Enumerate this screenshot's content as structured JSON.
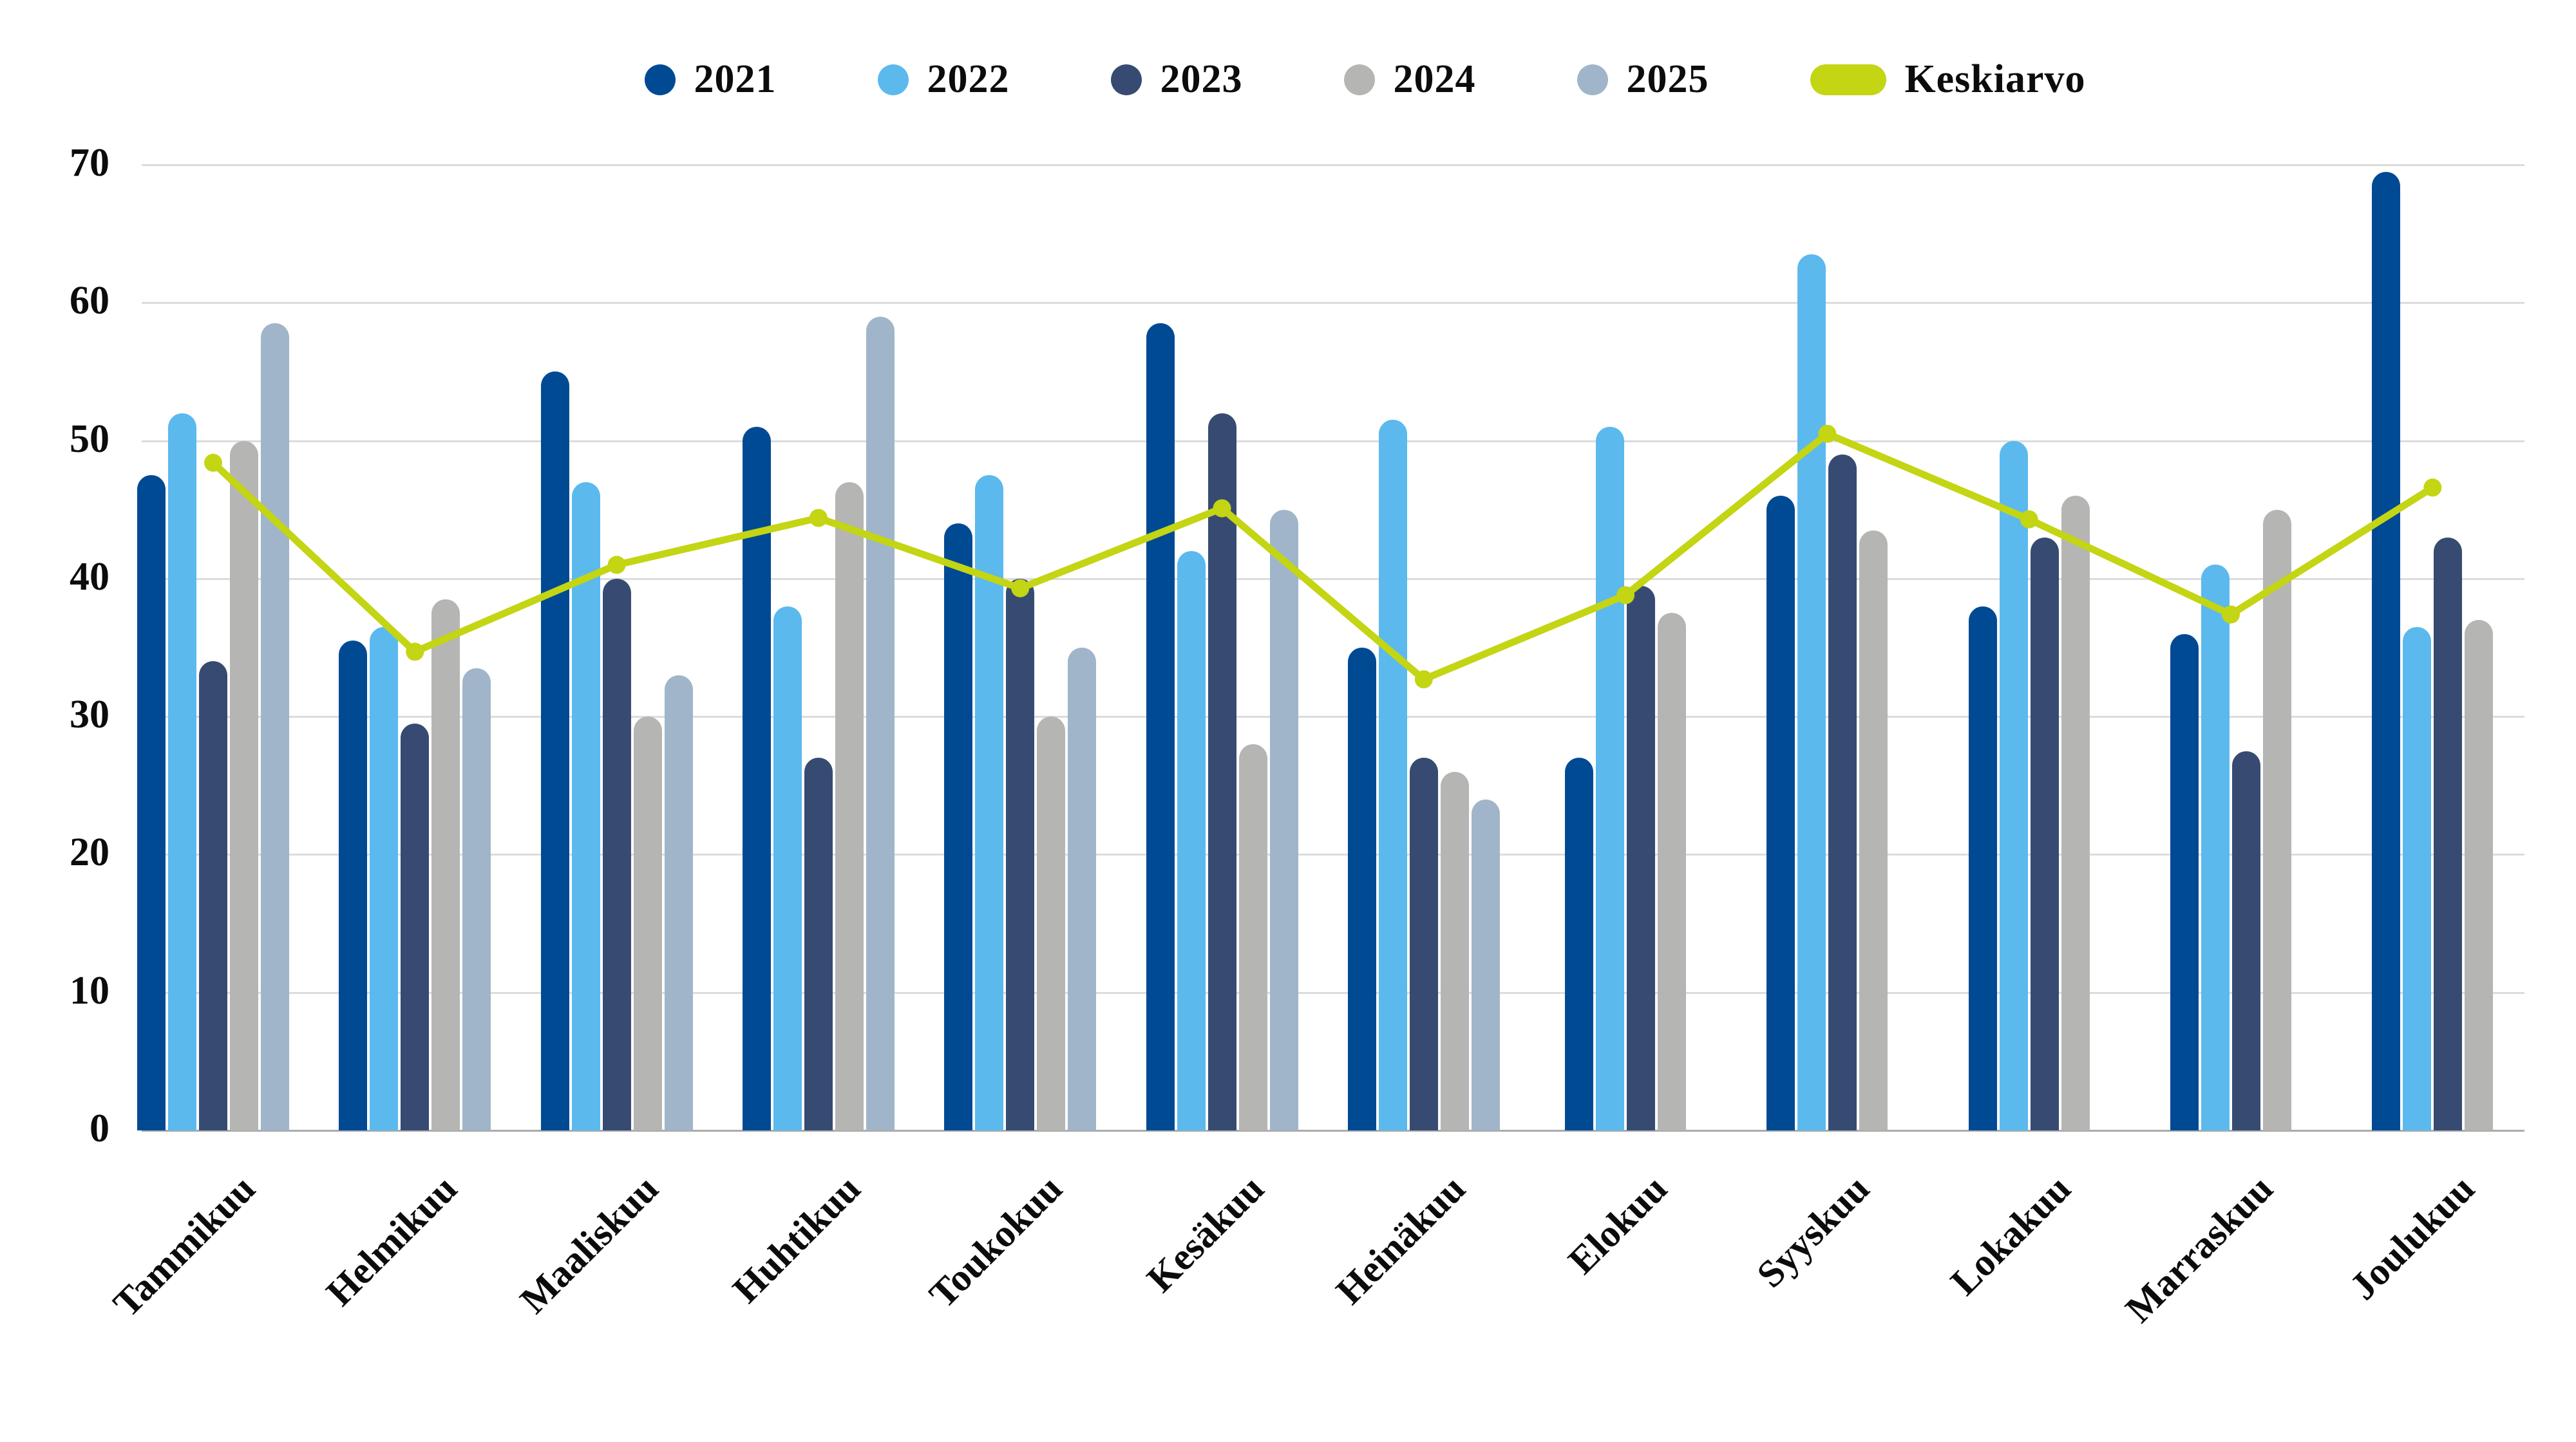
{
  "legend": {
    "items": [
      {
        "label": "2021",
        "color": "#004a94",
        "marker": "circle"
      },
      {
        "label": "2022",
        "color": "#5bb9ed",
        "marker": "circle"
      },
      {
        "label": "2023",
        "color": "#374b72",
        "marker": "circle"
      },
      {
        "label": "2024",
        "color": "#b5b5b3",
        "marker": "circle"
      },
      {
        "label": "2025",
        "color": "#a0b5c9",
        "marker": "circle"
      },
      {
        "label": "Keskiarvo",
        "color": "#c3d513",
        "marker": "pill"
      }
    ]
  },
  "chart_data": {
    "type": "bar",
    "title": "",
    "xlabel": "",
    "ylabel": "",
    "ylim": [
      0,
      70
    ],
    "yticks": [
      0,
      10,
      20,
      30,
      40,
      50,
      60,
      70
    ],
    "grid": true,
    "legend_position": "top",
    "categories": [
      "Tammikuu",
      "Helmikuu",
      "Maaliskuu",
      "Huhtikuu",
      "Toukokuu",
      "Kesäkuu",
      "Heinäkuu",
      "Elokuu",
      "Syyskuu",
      "Lokakuu",
      "Marraskuu",
      "Joulukuu"
    ],
    "series": [
      {
        "name": "2021",
        "color": "#004a94",
        "values": [
          47.5,
          35.5,
          55,
          51,
          44,
          58.5,
          35,
          27,
          46,
          38,
          36,
          69.5
        ]
      },
      {
        "name": "2022",
        "color": "#5bb9ed",
        "values": [
          52,
          36.5,
          47,
          38,
          47.5,
          42,
          51.5,
          51,
          63.5,
          50,
          41,
          36.5
        ]
      },
      {
        "name": "2023",
        "color": "#374b72",
        "values": [
          34,
          29.5,
          40,
          27,
          40,
          52,
          27,
          39.5,
          49,
          43,
          27.5,
          43
        ]
      },
      {
        "name": "2024",
        "color": "#b5b5b3",
        "values": [
          50,
          38.5,
          30,
          47,
          30,
          28,
          26,
          37.5,
          43.5,
          46,
          45,
          37
        ]
      },
      {
        "name": "2025",
        "color": "#a0b5c9",
        "values": [
          58.5,
          33.5,
          33,
          59,
          35,
          45,
          24,
          null,
          null,
          null,
          null,
          null
        ]
      }
    ],
    "line_series": {
      "name": "Keskiarvo",
      "color": "#c3d513",
      "values": [
        48.4,
        34.7,
        41.0,
        44.4,
        39.3,
        45.1,
        32.7,
        38.8,
        50.5,
        44.3,
        37.4,
        46.6
      ]
    },
    "colors": {
      "grid": "#dcdcdc",
      "axis": "#ababab",
      "text": "#0c0c0c",
      "background": "#ffffff"
    }
  }
}
